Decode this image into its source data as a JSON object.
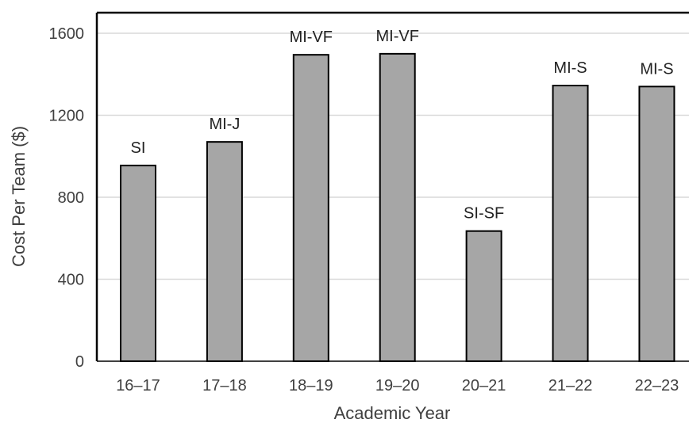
{
  "chart_data": {
    "type": "bar",
    "categories": [
      "16–17",
      "17–18",
      "18–19",
      "19–20",
      "20–21",
      "21–22",
      "22–23"
    ],
    "values": [
      955,
      1070,
      1495,
      1500,
      635,
      1345,
      1340
    ],
    "bar_labels": [
      "SI",
      "MI-J",
      "MI-VF",
      "MI-VF",
      "SI-SF",
      "MI-S",
      "MI-S"
    ],
    "title": "",
    "xlabel": "Academic Year",
    "ylabel": "Cost Per Team ($)",
    "ylim": [
      0,
      1600
    ],
    "yticks": [
      "0",
      "400",
      "800",
      "1200",
      "1600"
    ],
    "grid": true,
    "colors": {
      "bar_fill": "#a6a6a6",
      "bar_stroke": "#000000",
      "grid": "#d9d9d9",
      "axis": "#000000"
    }
  }
}
